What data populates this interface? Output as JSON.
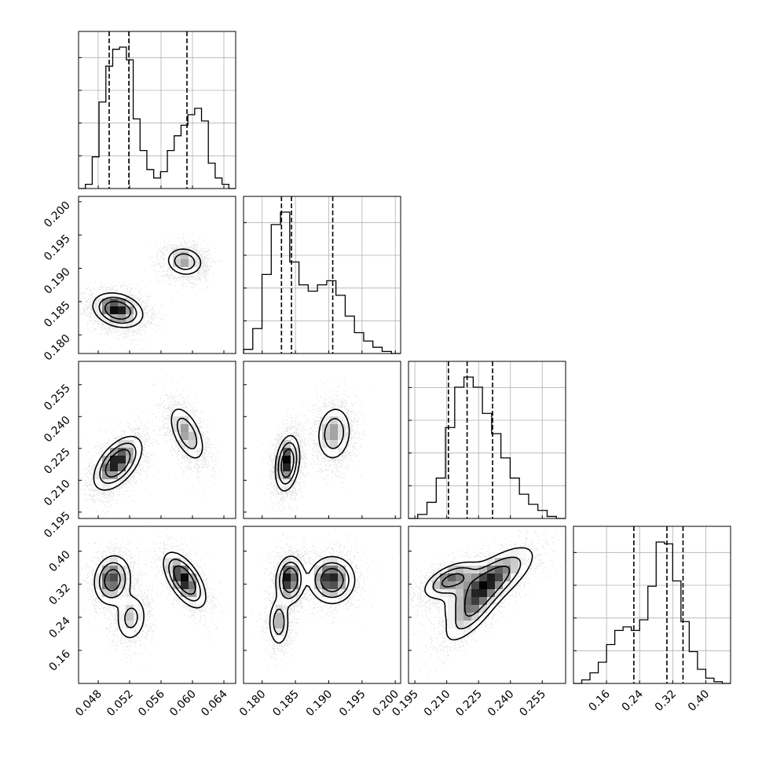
{
  "chart_data": {
    "type": "corner",
    "parameters": 4,
    "axes": [
      {
        "range": [
          0.0455,
          0.0655
        ],
        "ticks": [
          0.048,
          0.052,
          0.056,
          0.06,
          0.064
        ],
        "tick_labels": [
          "0.048",
          "0.052",
          "0.056",
          "0.060",
          "0.064"
        ],
        "quantiles": [
          0.0494,
          0.0519,
          0.0593
        ],
        "hist_bins": [
          0,
          2,
          15,
          41,
          58,
          66,
          67,
          61,
          33,
          18,
          9,
          5,
          8,
          18,
          25,
          30,
          35,
          38,
          32,
          12,
          5,
          2,
          0
        ],
        "label": ""
      },
      {
        "range": [
          0.1772,
          0.2008
        ],
        "ticks": [
          0.18,
          0.185,
          0.19,
          0.195,
          0.2
        ],
        "tick_labels": [
          "0.180",
          "0.185",
          "0.190",
          "0.195",
          "0.200"
        ],
        "quantiles": [
          0.1829,
          0.1844,
          0.1906
        ],
        "hist_bins": [
          2,
          12,
          38,
          62,
          68,
          44,
          33,
          30,
          33,
          35,
          28,
          18,
          10,
          6,
          3,
          1,
          0
        ],
        "label": ""
      },
      {
        "range": [
          0.192,
          0.266
        ],
        "ticks": [
          0.195,
          0.21,
          0.225,
          0.24,
          0.255
        ],
        "tick_labels": [
          "0.195",
          "0.210",
          "0.225",
          "0.240",
          "0.255"
        ],
        "quantiles": [
          0.2108,
          0.2196,
          0.2316
        ],
        "hist_bins": [
          0,
          2,
          8,
          20,
          45,
          65,
          70,
          65,
          52,
          42,
          30,
          20,
          12,
          7,
          4,
          1,
          0
        ],
        "label": ""
      },
      {
        "range": [
          0.08,
          0.46
        ],
        "ticks": [
          0.16,
          0.24,
          0.32,
          0.4
        ],
        "tick_labels": [
          "0.16",
          "0.24",
          "0.32",
          "0.40"
        ],
        "quantiles": [
          0.226,
          0.306,
          0.345
        ],
        "hist_bins": [
          0,
          2,
          6,
          12,
          22,
          30,
          32,
          30,
          36,
          55,
          80,
          79,
          58,
          35,
          18,
          8,
          3,
          1,
          0
        ],
        "label": ""
      }
    ],
    "pairs": [
      {
        "i": 1,
        "j": 0,
        "clusters": [
          {
            "cx": 0.0505,
            "cy": 0.1837,
            "sx": 0.00165,
            "sy": 0.00135,
            "rho": -0.25,
            "w": 0.62
          },
          {
            "cx": 0.059,
            "cy": 0.191,
            "sx": 0.00125,
            "sy": 0.00115,
            "rho": -0.1,
            "w": 0.38
          }
        ]
      },
      {
        "i": 2,
        "j": 0,
        "clusters": [
          {
            "cx": 0.0505,
            "cy": 0.218,
            "sx": 0.0016,
            "sy": 0.0066,
            "rho": 0.55,
            "w": 0.62
          },
          {
            "cx": 0.0593,
            "cy": 0.232,
            "sx": 0.0012,
            "sy": 0.007,
            "rho": -0.55,
            "w": 0.38
          }
        ]
      },
      {
        "i": 2,
        "j": 1,
        "clusters": [
          {
            "cx": 0.1838,
            "cy": 0.218,
            "sx": 0.00095,
            "sy": 0.0068,
            "rho": 0.25,
            "w": 0.62
          },
          {
            "cx": 0.1908,
            "cy": 0.232,
            "sx": 0.0014,
            "sy": 0.007,
            "rho": 0.1,
            "w": 0.38
          }
        ]
      },
      {
        "i": 3,
        "j": 0,
        "clusters": [
          {
            "cx": 0.0498,
            "cy": 0.33,
            "sx": 0.00125,
            "sy": 0.032,
            "rho": 0.1,
            "w": 0.4
          },
          {
            "cx": 0.0522,
            "cy": 0.238,
            "sx": 0.0011,
            "sy": 0.032,
            "rho": 0.1,
            "w": 0.22
          },
          {
            "cx": 0.059,
            "cy": 0.33,
            "sx": 0.0014,
            "sy": 0.035,
            "rho": -0.6,
            "w": 0.38
          }
        ]
      },
      {
        "i": 3,
        "j": 1,
        "clusters": [
          {
            "cx": 0.1842,
            "cy": 0.33,
            "sx": 0.0011,
            "sy": 0.03,
            "rho": 0.05,
            "w": 0.4
          },
          {
            "cx": 0.1825,
            "cy": 0.228,
            "sx": 0.00085,
            "sy": 0.032,
            "rho": 0.0,
            "w": 0.22
          },
          {
            "cx": 0.1905,
            "cy": 0.33,
            "sx": 0.0018,
            "sy": 0.03,
            "rho": 0.0,
            "w": 0.38
          }
        ]
      },
      {
        "i": 3,
        "j": 2,
        "clusters": [
          {
            "cx": 0.212,
            "cy": 0.33,
            "sx": 0.007,
            "sy": 0.024,
            "rho": 0.55,
            "w": 0.4
          },
          {
            "cx": 0.222,
            "cy": 0.25,
            "sx": 0.0075,
            "sy": 0.042,
            "rho": 0.75,
            "w": 0.22
          },
          {
            "cx": 0.23,
            "cy": 0.325,
            "sx": 0.011,
            "sy": 0.045,
            "rho": 0.75,
            "w": 0.38
          }
        ]
      }
    ],
    "colors": {
      "line": "#000000",
      "grid": "#b0b0b0",
      "points": "#000000"
    }
  }
}
